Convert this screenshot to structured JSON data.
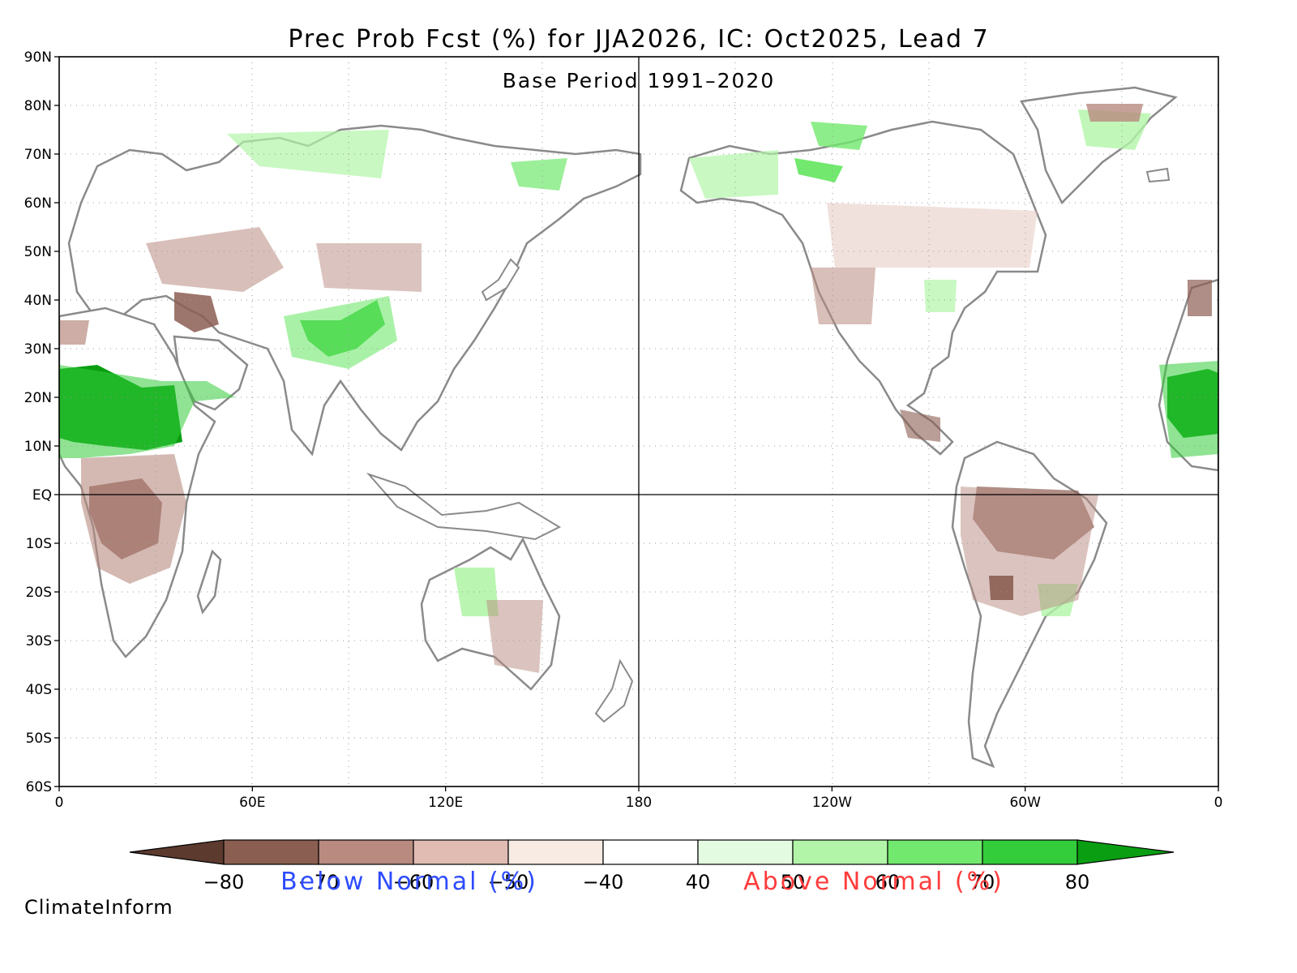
{
  "title": "Prec Prob Fcst (%) for JJA2026, IC: Oct2025, Lead 7",
  "subtitle": "Base Period 1991–2020",
  "credit": "ClimateInform",
  "lat_ticks": [
    "90N",
    "80N",
    "70N",
    "60N",
    "50N",
    "40N",
    "30N",
    "20N",
    "10N",
    "EQ",
    "10S",
    "20S",
    "30S",
    "40S",
    "50S",
    "60S"
  ],
  "lon_ticks": [
    "0",
    "60E",
    "120E",
    "180",
    "120W",
    "60W",
    "0"
  ],
  "colorbar": {
    "labels": [
      "−80",
      "−70",
      "−60",
      "−50",
      "−40",
      "40",
      "50",
      "60",
      "70",
      "80"
    ],
    "colors": [
      "#5c3a2e",
      "#8b5e52",
      "#b88a80",
      "#e0bcb3",
      "#f7ebe4",
      "#ffffff",
      "#e3fbe0",
      "#b2f5a8",
      "#72e86e",
      "#33cc3a",
      "#0a9e12"
    ],
    "below_label": "Below Normal (%)",
    "above_label": "Above Normal (%)",
    "below_color": "#2d4bff",
    "above_color": "#ff3b3b"
  }
}
